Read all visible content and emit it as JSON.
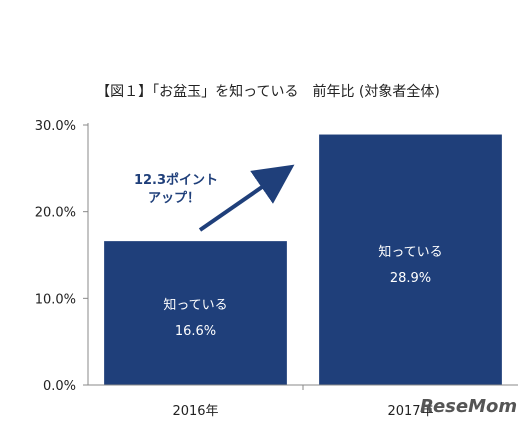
{
  "chart_data": {
    "type": "bar",
    "title": "【図１】「お盆玉」を知っている　前年比 (対象者全体)",
    "categories": [
      "2016年",
      "2017年"
    ],
    "values": [
      16.6,
      28.9
    ],
    "bar_labels": [
      {
        "line1": "知っている",
        "line2": "16.6%"
      },
      {
        "line1": "知っている",
        "line2": "28.9%"
      }
    ],
    "ylim": [
      0,
      30
    ],
    "yticks": [
      0,
      10,
      20,
      30
    ],
    "ytick_labels": [
      "0.0%",
      "10.0%",
      "20.0%",
      "30.0%"
    ],
    "xlabel": "",
    "ylabel": "",
    "grid": false,
    "bar_color": "#1f3f7a",
    "annotation": {
      "line1": "12.3ポイント",
      "line2": "アップ！",
      "color": "#1f3f7a"
    }
  },
  "watermark": {
    "text": "ReseMom"
  }
}
